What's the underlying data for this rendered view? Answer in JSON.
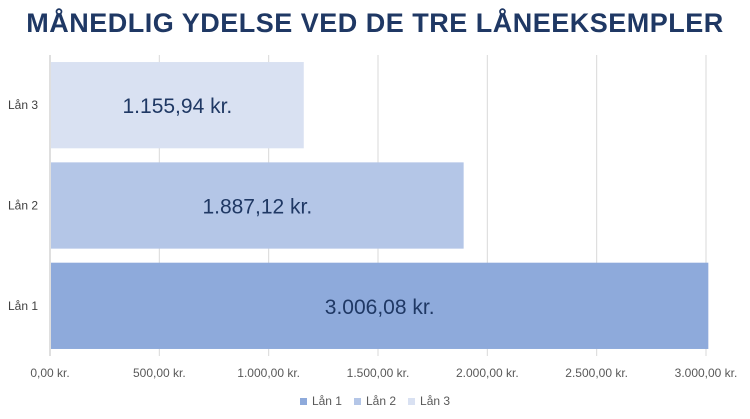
{
  "chart_data": {
    "type": "bar",
    "orientation": "horizontal",
    "title": "MÅNEDLIG YDELSE VED DE TRE LÅNEEKSEMPLER",
    "categories": [
      "Lån 1",
      "Lån 2",
      "Lån 3"
    ],
    "values": [
      3006.08,
      1887.12,
      1155.94
    ],
    "data_labels": [
      "3.006,08 kr.",
      "1.887,12 kr.",
      "1.155,94 kr."
    ],
    "colors": [
      "#8eaadb",
      "#b4c6e7",
      "#d9e1f2"
    ],
    "xlim": [
      0,
      3000
    ],
    "x_ticks": [
      0,
      500,
      1000,
      1500,
      2000,
      2500,
      3000
    ],
    "x_tick_labels": [
      "0,00 kr.",
      "500,00 kr.",
      "1.000,00 kr.",
      "1.500,00 kr.",
      "2.000,00 kr.",
      "2.500,00 kr.",
      "3.000,00 kr."
    ],
    "grid": true,
    "legend": {
      "placement": "bottom",
      "entries": [
        "Lån 1",
        "Lån 2",
        "Lån 3"
      ]
    },
    "xlabel": "",
    "ylabel": ""
  }
}
